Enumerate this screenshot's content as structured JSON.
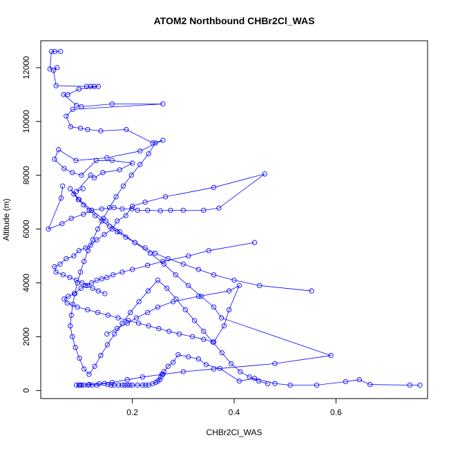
{
  "chart_data": {
    "type": "line",
    "title": "ATOM2 Northbound CHBr2Cl_WAS",
    "xlabel": "CHBr2Cl_WAS",
    "ylabel": "Altitude (m)",
    "xlim": [
      0.02,
      0.78
    ],
    "ylim": [
      -300,
      13000
    ],
    "xticks": [
      0.2,
      0.4,
      0.6
    ],
    "xtick_labels": [
      "0.2",
      "0.4",
      "0.6"
    ],
    "yticks": [
      0,
      2000,
      4000,
      6000,
      8000,
      10000,
      12000
    ],
    "ytick_labels": [
      "0",
      "2000",
      "4000",
      "6000",
      "8000",
      "10000",
      "12000"
    ],
    "marker": "open-circle",
    "grid": false,
    "series": [
      {
        "color": "#0000ff",
        "x": [
          0.765,
          0.745,
          0.667,
          0.646,
          0.619,
          0.562,
          0.51,
          0.48,
          0.44,
          0.41,
          0.372,
          0.345,
          0.33,
          0.31,
          0.29,
          0.28,
          0.27,
          0.262,
          0.258,
          0.256,
          0.254,
          0.25,
          0.246,
          0.24,
          0.232,
          0.226,
          0.22,
          0.21,
          0.2,
          0.195,
          0.19,
          0.185,
          0.18,
          0.173,
          0.164,
          0.158,
          0.152,
          0.145,
          0.13,
          0.121,
          0.113,
          0.105,
          0.097,
          0.09
        ],
        "y": [
          200,
          200,
          220,
          400,
          330,
          200,
          200,
          260,
          450,
          350,
          820,
          960,
          1170,
          1250,
          1330,
          1050,
          900,
          700,
          600,
          500,
          400,
          350,
          300,
          250,
          200,
          200,
          200,
          200,
          200,
          200,
          200,
          200,
          200,
          200,
          200,
          200,
          220,
          260,
          200,
          200,
          200,
          200,
          200,
          200
        ],
        "name": ""
      },
      {
        "color": "#0000ff",
        "x": [
          0.059,
          0.048,
          0.041,
          0.038,
          0.052,
          0.045,
          0.05,
          0.11,
          0.118,
          0.125,
          0.133,
          0.095,
          0.073,
          0.065,
          0.09,
          0.1,
          0.16,
          0.26,
          0.083,
          0.07,
          0.079,
          0.098,
          0.112,
          0.138,
          0.188,
          0.24,
          0.26,
          0.215,
          0.15,
          0.089,
          0.055,
          0.047,
          0.066,
          0.082,
          0.1,
          0.129,
          0.16,
          0.2,
          0.175,
          0.142,
          0.125,
          0.118,
          0.09,
          0.103
        ],
        "y": [
          12600,
          12600,
          12600,
          11950,
          12000,
          11900,
          11330,
          11300,
          11300,
          11300,
          11300,
          11200,
          11000,
          11000,
          10600,
          10550,
          10650,
          10650,
          10450,
          10200,
          9800,
          9750,
          9700,
          9650,
          9700,
          9200,
          9300,
          8900,
          8650,
          8550,
          8950,
          8600,
          8250,
          8100,
          8000,
          8550,
          8550,
          8450,
          8200,
          8100,
          7900,
          8000,
          7400,
          7500
        ],
        "name": ""
      },
      {
        "color": "#0000ff",
        "x": [
          0.063,
          0.06,
          0.035,
          0.062,
          0.08,
          0.104,
          0.12,
          0.14,
          0.164,
          0.18,
          0.199,
          0.21,
          0.23,
          0.255,
          0.275,
          0.3,
          0.34,
          0.37,
          0.46,
          0.36,
          0.265,
          0.225,
          0.2,
          0.187,
          0.17,
          0.16,
          0.145,
          0.13,
          0.118,
          0.108,
          0.095,
          0.085,
          0.07,
          0.058,
          0.047,
          0.05,
          0.064,
          0.077,
          0.09,
          0.101,
          0.112,
          0.122,
          0.133,
          0.146
        ],
        "y": [
          7600,
          7150,
          6000,
          6200,
          6400,
          6550,
          6700,
          6750,
          6800,
          6750,
          6750,
          6700,
          6700,
          6680,
          6700,
          6700,
          6700,
          6780,
          8050,
          7550,
          7200,
          7000,
          6850,
          6500,
          6300,
          6000,
          5800,
          5600,
          5400,
          5300,
          5200,
          5000,
          4900,
          4700,
          4600,
          4400,
          4300,
          4200,
          4100,
          4000,
          3900,
          3800,
          3700,
          3600
        ],
        "name": ""
      },
      {
        "color": "#0000ff",
        "x": [
          0.44,
          0.35,
          0.31,
          0.26,
          0.23,
          0.2,
          0.18,
          0.162,
          0.15,
          0.14,
          0.13,
          0.12,
          0.108,
          0.099,
          0.086,
          0.074,
          0.066,
          0.072,
          0.092,
          0.112,
          0.132,
          0.152,
          0.172,
          0.192,
          0.212,
          0.232,
          0.252,
          0.272,
          0.292,
          0.318,
          0.34,
          0.36,
          0.38,
          0.39,
          0.41,
          0.39,
          0.33,
          0.28,
          0.25,
          0.23,
          0.208,
          0.19,
          0.17,
          0.15
        ],
        "y": [
          5500,
          5200,
          5000,
          4800,
          4650,
          4500,
          4400,
          4300,
          4200,
          4150,
          4100,
          4000,
          3900,
          3800,
          3600,
          3500,
          3400,
          3250,
          3100,
          3000,
          2900,
          2800,
          2700,
          2600,
          2500,
          2400,
          2300,
          2200,
          2100,
          2000,
          1900,
          1800,
          2400,
          3000,
          3900,
          3700,
          3500,
          3300,
          3100,
          2900,
          2700,
          2500,
          2300,
          2100
        ],
        "name": ""
      },
      {
        "color": "#0000ff",
        "x": [
          0.552,
          0.45,
          0.4,
          0.36,
          0.33,
          0.3,
          0.27,
          0.245,
          0.225,
          0.205,
          0.187,
          0.17,
          0.155,
          0.14,
          0.127,
          0.115,
          0.104,
          0.094,
          0.085,
          0.078,
          0.095,
          0.12,
          0.148,
          0.175,
          0.205,
          0.235,
          0.262,
          0.285,
          0.31,
          0.335,
          0.36,
          0.375,
          0.59,
          0.48,
          0.36,
          0.3,
          0.26,
          0.22,
          0.19,
          0.16,
          0.135,
          0.115,
          0.1,
          0.095
        ],
        "y": [
          3700,
          3900,
          4100,
          4300,
          4500,
          4700,
          4900,
          5100,
          5300,
          5500,
          5700,
          5900,
          6100,
          6300,
          6500,
          6700,
          6900,
          7100,
          7300,
          7500,
          7100,
          6700,
          6300,
          5900,
          5500,
          5100,
          4700,
          4300,
          3900,
          3500,
          3100,
          2700,
          1300,
          1000,
          800,
          700,
          600,
          500,
          400,
          300,
          250,
          220,
          200,
          200
        ],
        "name": ""
      },
      {
        "color": "#0000ff",
        "x": [
          0.245,
          0.232,
          0.215,
          0.198,
          0.182,
          0.168,
          0.155,
          0.143,
          0.132,
          0.122,
          0.113,
          0.105,
          0.098,
          0.092,
          0.087,
          0.083,
          0.08,
          0.078,
          0.082,
          0.088,
          0.096,
          0.105,
          0.115,
          0.126,
          0.138,
          0.151,
          0.165,
          0.18,
          0.196,
          0.213,
          0.231,
          0.25,
          0.268,
          0.286,
          0.304,
          0.322,
          0.34,
          0.358,
          0.376,
          0.394,
          0.412,
          0.43,
          0.448,
          0.466
        ],
        "y": [
          9200,
          8800,
          8400,
          8000,
          7600,
          7200,
          6800,
          6400,
          6000,
          5600,
          5200,
          4800,
          4400,
          4000,
          3600,
          3200,
          2800,
          2400,
          2000,
          1600,
          1200,
          800,
          600,
          900,
          1300,
          1700,
          2100,
          2500,
          2900,
          3300,
          3700,
          4100,
          3800,
          3400,
          3000,
          2600,
          2200,
          1800,
          1400,
          1000,
          700,
          500,
          350,
          250
        ],
        "name": ""
      }
    ]
  }
}
